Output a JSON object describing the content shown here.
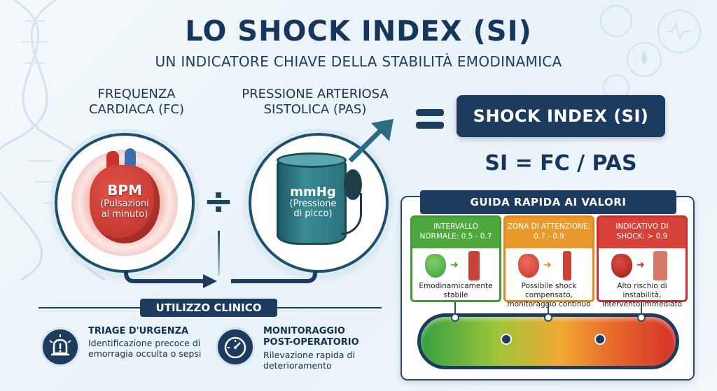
{
  "header": {
    "title": "LO SHOCK INDEX (SI)",
    "subtitle": "UN INDICATORE CHIAVE DELLA STABILITÀ EMODINAMICA"
  },
  "fc": {
    "label_line1": "FREQUENZA",
    "label_line2": "CARDIACA (FC)",
    "unit": "BPM",
    "unit_desc_line1": "(Pulsazioni",
    "unit_desc_line2": "al minuto)"
  },
  "pas": {
    "label_line1": "PRESSIONE ARTERIOSA",
    "label_line2": "SISTOLICA (PAS)",
    "unit": "mmHg",
    "unit_desc_line1": "(Pressione",
    "unit_desc_line2": "di picco)"
  },
  "operator": "÷",
  "result": {
    "box_label": "SHOCK INDEX (SI)",
    "formula": "SI = FC / PAS"
  },
  "guide": {
    "title": "GUIDA RAPIDA AI VALORI",
    "zones": [
      {
        "header_line1": "INTERVALLO",
        "header_line2": "NORMALE: 0.5 - 0.7",
        "desc_line1": "Emodinamicamente",
        "desc_line2": "stabile",
        "color": "#4fa83e"
      },
      {
        "header_line1": "ZONA DI ATTENZIONE:",
        "header_line2": "0.7 - 0.9",
        "desc_line1": "Possibile shock compensato,",
        "desc_line2": "monitoraggio continuo",
        "color": "#ea9a2d"
      },
      {
        "header_line1": "INDICATIVO DI",
        "header_line2": "SHOCK: > 0.9",
        "desc_line1": "Alto rischio di instabilità,",
        "desc_line2": "intervento immediato",
        "color": "#d6413a"
      }
    ]
  },
  "usage": {
    "title": "UTILIZZO CLINICO",
    "items": [
      {
        "title": "TRIAGE D'URGENZA",
        "text_line1": "Identificazione precoce di",
        "text_line2": "emorragia occulta o sepsi",
        "icon": "alarm-icon"
      },
      {
        "title_line1": "MONITORAGGIO",
        "title_line2": "POST-OPERATORIO",
        "text_line1": "Rilevazione rapida di",
        "text_line2": "deterioramento",
        "icon": "gauge-icon"
      }
    ]
  }
}
